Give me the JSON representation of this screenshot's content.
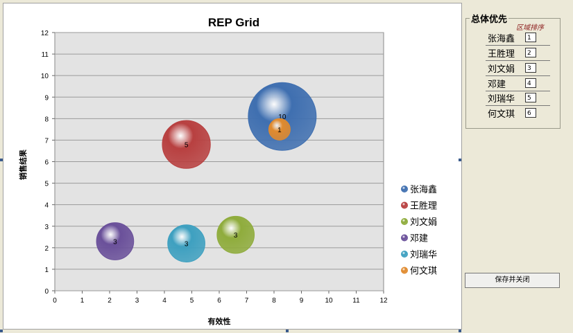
{
  "chart_data": {
    "type": "bubble",
    "title": "REP Grid",
    "xlabel": "有效性",
    "ylabel": "销售结果",
    "xlim": [
      0,
      12
    ],
    "ylim": [
      0,
      12
    ],
    "xticks": [
      "0",
      "1",
      "2",
      "3",
      "4",
      "5",
      "6",
      "7",
      "8",
      "9",
      "10",
      "11",
      "12"
    ],
    "yticks": [
      "0",
      "1",
      "2",
      "3",
      "4",
      "5",
      "6",
      "7",
      "8",
      "9",
      "10",
      "11",
      "12"
    ],
    "grid": "horizontal",
    "legend_position": "right",
    "series": [
      {
        "name": "张海鑫",
        "x": 8.3,
        "y": 8.1,
        "size": 10,
        "label": "10",
        "color": "#3f6fb0"
      },
      {
        "name": "王胜理",
        "x": 4.8,
        "y": 6.8,
        "size": 5,
        "label": "5",
        "color": "#b84040"
      },
      {
        "name": "刘文娟",
        "x": 6.6,
        "y": 2.6,
        "size": 3,
        "label": "3",
        "color": "#8fac3c"
      },
      {
        "name": "邓建",
        "x": 2.2,
        "y": 2.3,
        "size": 3,
        "label": "3",
        "color": "#6a509a"
      },
      {
        "name": "刘瑞华",
        "x": 4.8,
        "y": 2.2,
        "size": 3,
        "label": "3",
        "color": "#3ea0c0"
      },
      {
        "name": "何文琪",
        "x": 8.2,
        "y": 7.5,
        "size": 1,
        "label": "1",
        "color": "#e08a2e"
      }
    ]
  },
  "side_panel": {
    "title": "总体优先",
    "subtitle": "区域排序",
    "rows": [
      {
        "name": "张海鑫",
        "rank": "1"
      },
      {
        "name": "王胜理",
        "rank": "2"
      },
      {
        "name": "刘文娟",
        "rank": "3"
      },
      {
        "name": "邓建",
        "rank": "4"
      },
      {
        "name": "刘瑞华",
        "rank": "5"
      },
      {
        "name": "何文琪",
        "rank": "6"
      }
    ],
    "save_label": "保存并关闭"
  }
}
